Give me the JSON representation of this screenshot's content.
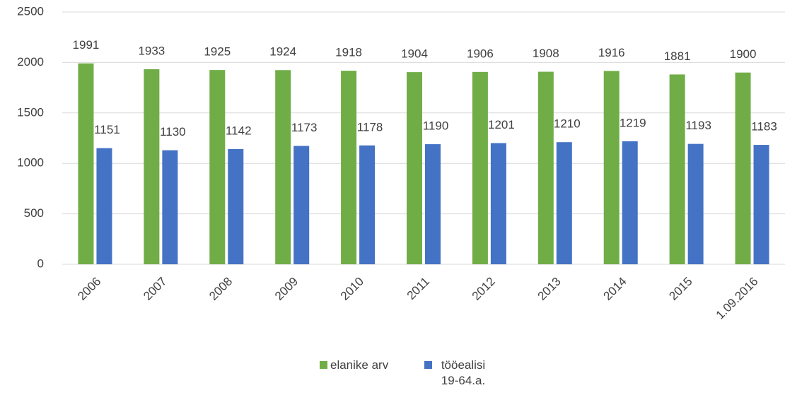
{
  "chart_data": {
    "type": "bar",
    "categories": [
      "2006",
      "2007",
      "2008",
      "2009",
      "2010",
      "2011",
      "2012",
      "2013",
      "2014",
      "2015",
      "1.09.2016"
    ],
    "series": [
      {
        "name": "elanike arv",
        "color": "#70ad47",
        "values": [
          1991,
          1933,
          1925,
          1924,
          1918,
          1904,
          1906,
          1908,
          1916,
          1881,
          1900
        ]
      },
      {
        "name": "tööealisi 19-64.a.",
        "color": "#4472c4",
        "values": [
          1151,
          1130,
          1142,
          1173,
          1178,
          1190,
          1201,
          1210,
          1219,
          1193,
          1183
        ]
      }
    ],
    "ylim": [
      0,
      2500
    ],
    "yticks": [
      0,
      500,
      1000,
      1500,
      2000,
      2500
    ],
    "grid": true,
    "legend": "bottom"
  }
}
